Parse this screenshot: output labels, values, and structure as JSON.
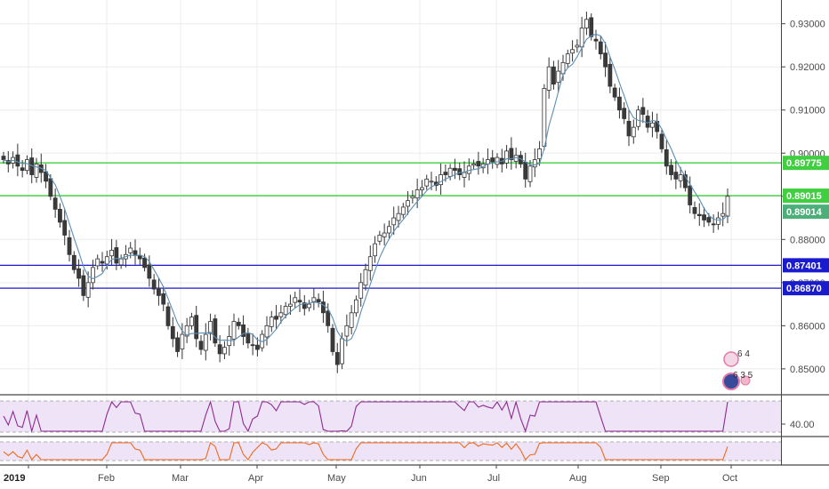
{
  "chart_data": {
    "type": "candlestick",
    "x_months": [
      "2019",
      "Feb",
      "Mar",
      "Apr",
      "May",
      "Jun",
      "Jul",
      "Aug",
      "Sep",
      "Oct"
    ],
    "y_ticks": [
      "0.93000",
      "0.92000",
      "0.91000",
      "0.90000",
      "0.89000",
      "0.88000",
      "0.87000",
      "0.86000",
      "0.85000"
    ],
    "y_tick_values": [
      0.93,
      0.92,
      0.91,
      0.9,
      0.89,
      0.88,
      0.87,
      0.86,
      0.85
    ],
    "ylim": [
      0.844,
      0.9355
    ],
    "grid": true,
    "close_series": [
      0.8985,
      0.8975,
      0.899,
      0.897,
      0.896,
      0.8985,
      0.895,
      0.8975,
      0.8955,
      0.8935,
      0.89,
      0.887,
      0.884,
      0.881,
      0.8765,
      0.873,
      0.871,
      0.867,
      0.87,
      0.8735,
      0.8755,
      0.8745,
      0.876,
      0.8775,
      0.8745,
      0.8755,
      0.8765,
      0.878,
      0.8765,
      0.8755,
      0.8735,
      0.871,
      0.8685,
      0.867,
      0.865,
      0.86,
      0.857,
      0.854,
      0.858,
      0.86,
      0.862,
      0.857,
      0.8545,
      0.858,
      0.861,
      0.856,
      0.8535,
      0.855,
      0.8575,
      0.861,
      0.86,
      0.8575,
      0.856,
      0.8555,
      0.8545,
      0.858,
      0.86,
      0.862,
      0.8615,
      0.863,
      0.8645,
      0.865,
      0.8665,
      0.8655,
      0.864,
      0.865,
      0.8665,
      0.8655,
      0.863,
      0.86,
      0.854,
      0.851,
      0.857,
      0.86,
      0.863,
      0.866,
      0.87,
      0.873,
      0.876,
      0.879,
      0.881,
      0.8815,
      0.883,
      0.885,
      0.886,
      0.8875,
      0.889,
      0.89,
      0.8915,
      0.892,
      0.894,
      0.8935,
      0.8925,
      0.895,
      0.895,
      0.8965,
      0.896,
      0.895,
      0.8955,
      0.897,
      0.8975,
      0.897,
      0.8975,
      0.8985,
      0.898,
      0.899,
      0.8975,
      0.9005,
      0.8985,
      0.8995,
      0.8975,
      0.894,
      0.897,
      0.8985,
      0.901,
      0.915,
      0.92,
      0.916,
      0.919,
      0.921,
      0.923,
      0.924,
      0.925,
      0.929,
      0.931,
      0.927,
      0.926,
      0.923,
      0.92,
      0.9155,
      0.913,
      0.91,
      0.908,
      0.904,
      0.906,
      0.91,
      0.909,
      0.906,
      0.907,
      0.905,
      0.901,
      0.897,
      0.895,
      0.894,
      0.895,
      0.892,
      0.888,
      0.886,
      0.8855,
      0.8845,
      0.884,
      0.8835,
      0.885,
      0.886,
      0.89
    ],
    "moving_average_color": "#5b8fb5",
    "levels": [
      {
        "label": "0.89775",
        "value": 0.89775,
        "color": "#3fcf3f"
      },
      {
        "label": "0.89015",
        "value": 0.89015,
        "color": "#3fcf3f"
      },
      {
        "label": "0.87401",
        "value": 0.87401,
        "color": "#1a1acf"
      },
      {
        "label": "0.86870",
        "value": 0.8687,
        "color": "#1a1acf"
      }
    ],
    "current_price": {
      "label": "0.89014",
      "value": 0.89014,
      "color": "#4caf7a"
    },
    "candle_colors": {
      "up": "#3a3a3a",
      "down": "#a0a0a0"
    }
  },
  "indicators": {
    "rsi": {
      "tick_label": "40.00",
      "color": "#8e2a8e",
      "band_color": "#efe3f8"
    },
    "oscillator": {
      "color": "#ef6a1a",
      "band_color": "#efe3f8"
    }
  },
  "badge": {
    "top_text": "6 4",
    "bottom_text": "6 3 5"
  }
}
